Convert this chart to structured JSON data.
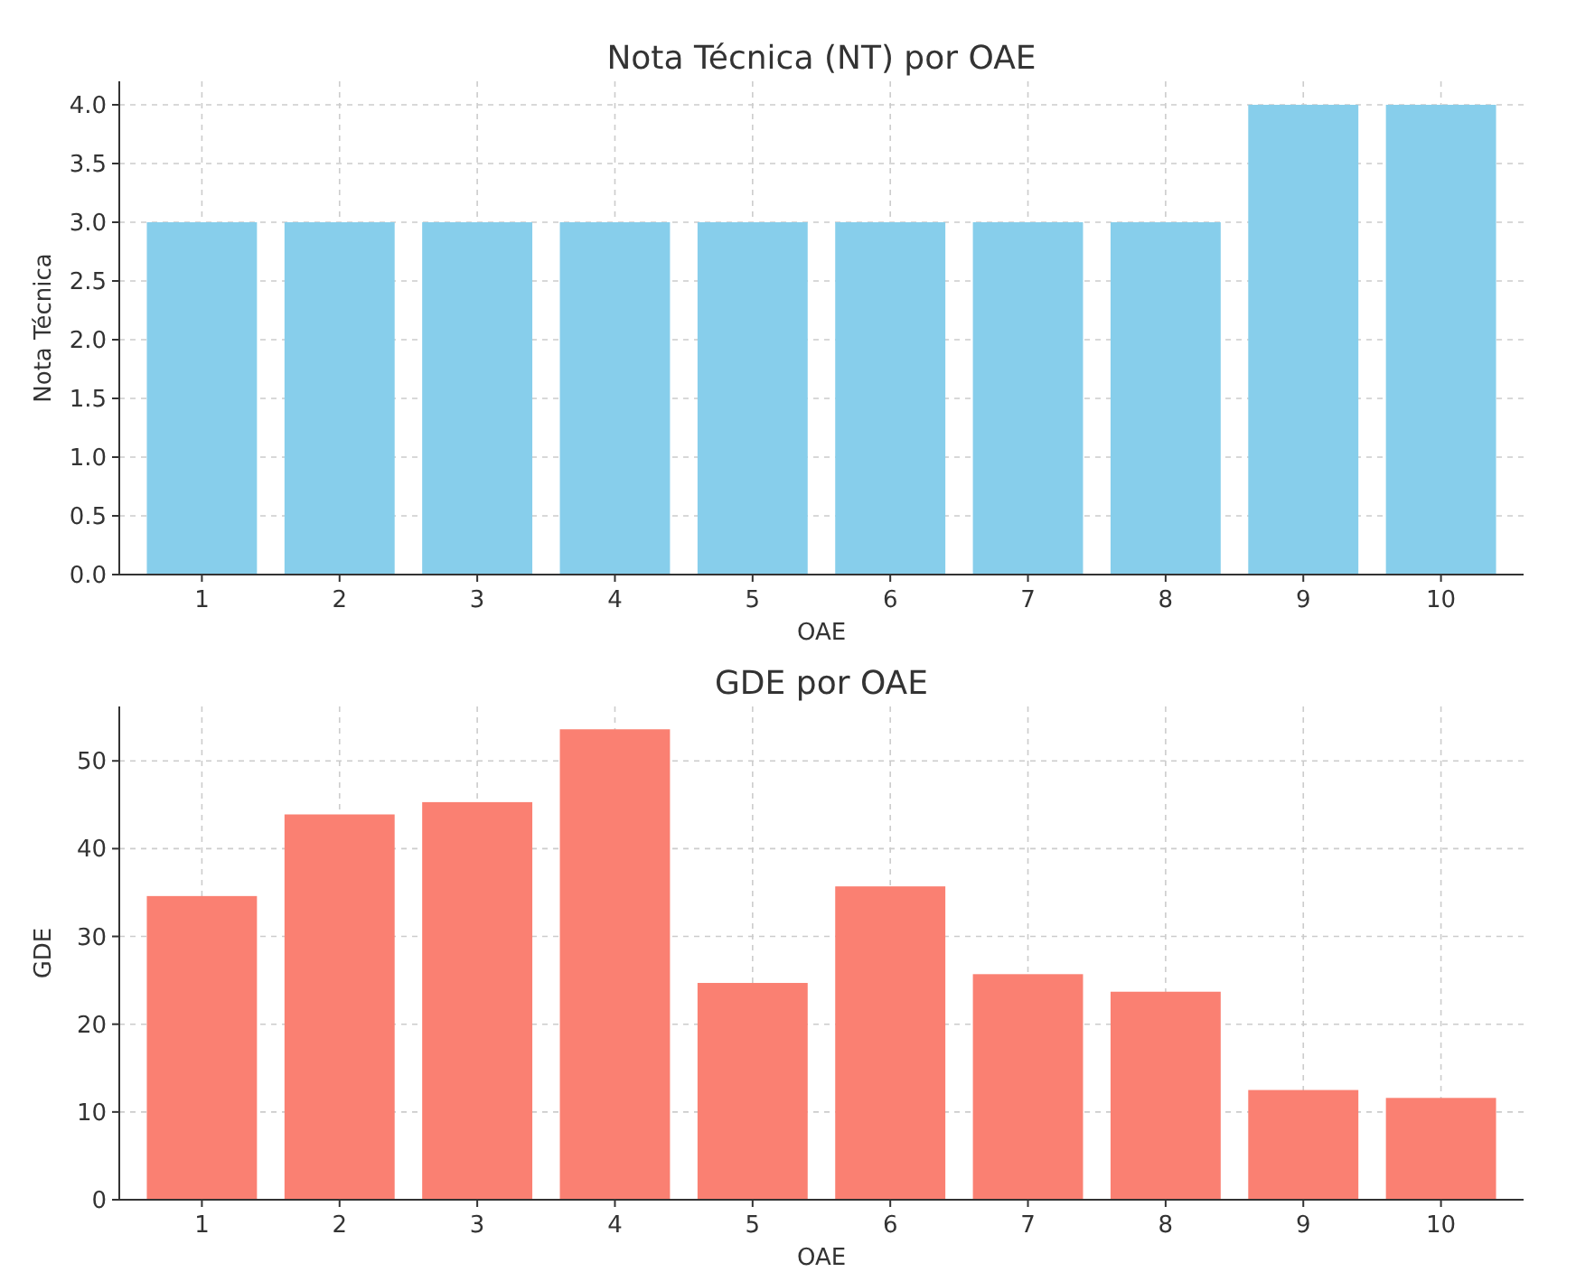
{
  "chart_data": [
    {
      "type": "bar",
      "title": "Nota Técnica (NT) por OAE",
      "xlabel": "OAE",
      "ylabel": "Nota Técnica",
      "categories": [
        "1",
        "2",
        "3",
        "4",
        "5",
        "6",
        "7",
        "8",
        "9",
        "10"
      ],
      "values": [
        3,
        3,
        3,
        3,
        3,
        3,
        3,
        3,
        4,
        4
      ],
      "color": "#87ceeb",
      "ylim": [
        0,
        4.2
      ],
      "yticks": [
        {
          "value": 0,
          "label": "0.0"
        },
        {
          "value": 0.5,
          "label": "0.5"
        },
        {
          "value": 1,
          "label": "1.0"
        },
        {
          "value": 1.5,
          "label": "1.5"
        },
        {
          "value": 2,
          "label": "2.0"
        },
        {
          "value": 2.5,
          "label": "2.5"
        },
        {
          "value": 3,
          "label": "3.0"
        },
        {
          "value": 3.5,
          "label": "3.5"
        },
        {
          "value": 4,
          "label": "4.0"
        }
      ],
      "grid": true
    },
    {
      "type": "bar",
      "title": "GDE por OAE",
      "xlabel": "OAE",
      "ylabel": "GDE",
      "categories": [
        "1",
        "2",
        "3",
        "4",
        "5",
        "6",
        "7",
        "8",
        "9",
        "10"
      ],
      "values": [
        34.6,
        43.9,
        45.3,
        53.6,
        24.7,
        35.7,
        25.7,
        23.7,
        12.5,
        11.6
      ],
      "color": "#fa8072",
      "ylim": [
        0,
        56.2
      ],
      "yticks": [
        0,
        10,
        20,
        30,
        40,
        50
      ],
      "grid": true
    }
  ]
}
